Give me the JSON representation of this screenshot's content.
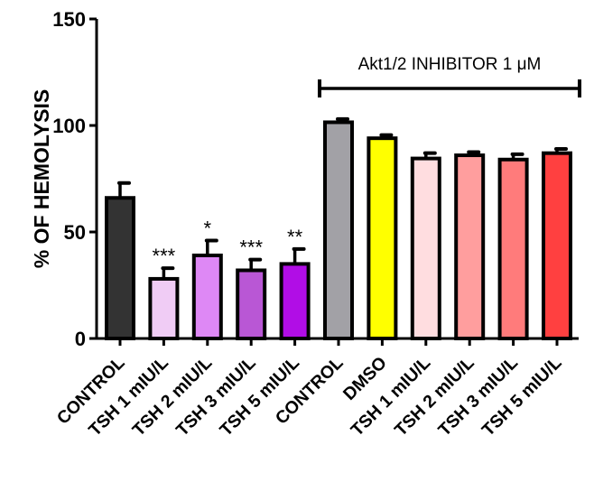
{
  "chart_data": {
    "type": "bar",
    "title": "",
    "xlabel": "",
    "ylabel": "% OF HEMOLYSIS",
    "ylim": [
      0,
      150
    ],
    "yticks": [
      0,
      50,
      100,
      150
    ],
    "ytick_labels": [
      "0",
      "50",
      "100",
      "150"
    ],
    "grid": false,
    "categories": [
      "CONTROL",
      "TSH 1 mIU/L",
      "TSH 2 mIU/L",
      "TSH 3 mIU/L",
      "TSH 5 mIU/L",
      "CONTROL",
      "DMSO",
      "TSH 1 mIU/L",
      "TSH 2 mIU/L",
      "TSH 3 mIU/L",
      "TSH 5 mIU/L"
    ],
    "values": [
      66,
      28,
      39,
      32,
      35,
      101.5,
      94,
      84.5,
      86,
      84,
      87
    ],
    "errors": [
      7,
      5,
      7,
      5,
      7,
      1.5,
      1.5,
      2.5,
      1.5,
      2.5,
      2
    ],
    "colors": [
      "#333333",
      "#f0ccf5",
      "#de88f5",
      "#b957d5",
      "#b10de6",
      "#a2a1a6",
      "#ffff00",
      "#ffdde0",
      "#ff9e9e",
      "#ff7b7b",
      "#ff4040"
    ],
    "significance": [
      "",
      "***",
      "*",
      "***",
      "**",
      "",
      "",
      "",
      "",
      "",
      ""
    ],
    "annotations": [
      {
        "text": "Akt1/2 INHIBITOR 1 μM",
        "spans": [
          "CONTROL",
          "TSH 5 mIU/L"
        ],
        "group_start_index": 5,
        "group_end_index": 10
      }
    ]
  }
}
